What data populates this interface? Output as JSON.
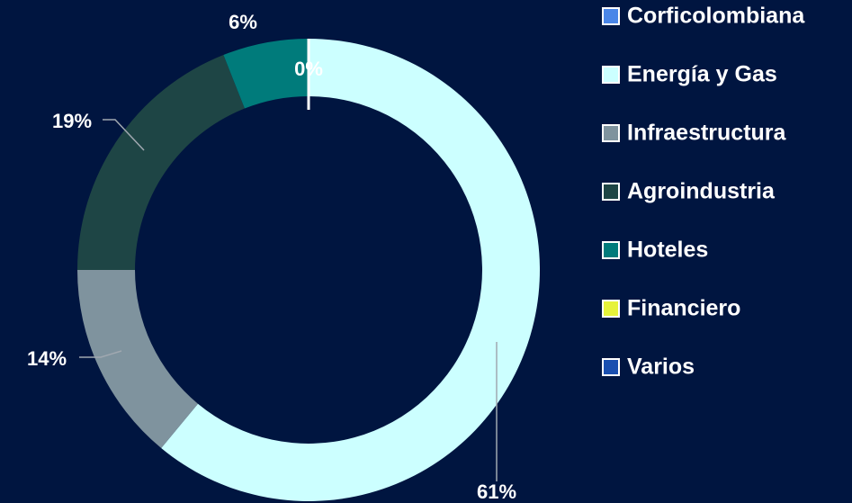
{
  "chart_data": {
    "type": "donut",
    "categories": [
      "Corficolombiana",
      "Energía y Gas",
      "Infraestructura",
      "Agroindustria",
      "Hoteles",
      "Financiero",
      "Varios"
    ],
    "values": [
      0,
      61,
      14,
      19,
      6,
      0,
      0
    ],
    "value_labels": [
      "0%",
      "61%",
      "14%",
      "19%",
      "6%",
      null,
      null
    ],
    "colors": [
      "#4a86e8",
      "#ccffff",
      "#7f939e",
      "#1e4545",
      "#007b7b",
      "#e6f23a",
      "#1a4fb0"
    ],
    "legend": "right"
  }
}
